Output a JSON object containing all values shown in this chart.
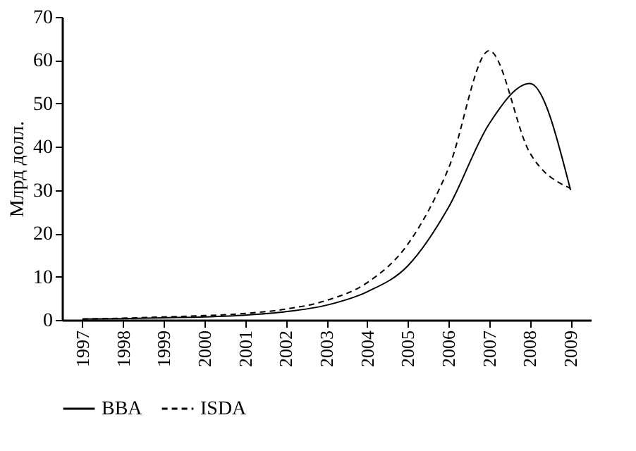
{
  "chart_data": {
    "type": "line",
    "ylabel": "Млрд долл.",
    "categories": [
      "1997",
      "1998",
      "1999",
      "2000",
      "2001",
      "2002",
      "2003",
      "2004",
      "2005",
      "2006",
      "2007",
      "2008",
      "2009"
    ],
    "series": [
      {
        "name": "BBA",
        "color": "#000000",
        "line_style": "solid",
        "values": [
          0.2,
          0.3,
          0.5,
          0.7,
          1.1,
          1.9,
          3.4,
          6.5,
          12.5,
          26,
          45.3,
          54.6,
          30
        ]
      },
      {
        "name": "ISDA",
        "color": "#000000",
        "line_style": "dashed",
        "values": [
          0.2,
          0.4,
          0.7,
          1.0,
          1.5,
          2.5,
          4.5,
          8.6,
          17.5,
          35,
          62.2,
          38.6,
          30.4
        ]
      }
    ],
    "ylim": [
      0,
      70
    ],
    "yticks": [
      0,
      10,
      20,
      30,
      40,
      50,
      60,
      70
    ],
    "grid": false,
    "legend": "bottom",
    "marker": "none"
  }
}
